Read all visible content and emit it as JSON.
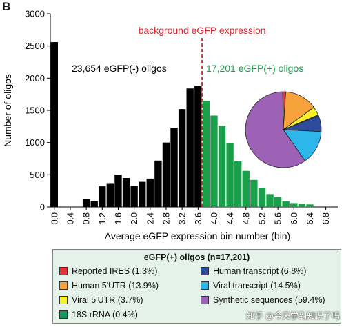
{
  "panel_label": "B",
  "colors": {
    "negative_bars": "#000000",
    "positive_bars": "#1aa04a",
    "threshold_line": "#d7262b",
    "legend_bg": "#e4f2e9"
  },
  "chart_data": [
    {
      "type": "bar",
      "title": "",
      "xlabel": "Average eGFP expression bin number (bin)",
      "ylabel": "Number of oligos",
      "ylim": [
        0,
        3000
      ],
      "yticks": [
        0,
        500,
        1000,
        1500,
        2000,
        2500,
        3000
      ],
      "xticks": [
        "0.0",
        "0.4",
        "0.8",
        "1.2",
        "1.6",
        "2.0",
        "2.4",
        "2.8",
        "3.2",
        "3.6",
        "4.0",
        "4.4",
        "4.8",
        "5.2",
        "5.6",
        "6.0",
        "6.4",
        "6.8"
      ],
      "bin_width": 0.2,
      "bins": [
        {
          "x": 0.0,
          "value": 2560,
          "group": "negative"
        },
        {
          "x": 0.8,
          "value": 120,
          "group": "negative"
        },
        {
          "x": 1.0,
          "value": 90,
          "group": "negative"
        },
        {
          "x": 1.2,
          "value": 320,
          "group": "negative"
        },
        {
          "x": 1.4,
          "value": 370,
          "group": "negative"
        },
        {
          "x": 1.6,
          "value": 500,
          "group": "negative"
        },
        {
          "x": 1.8,
          "value": 450,
          "group": "negative"
        },
        {
          "x": 2.0,
          "value": 330,
          "group": "negative"
        },
        {
          "x": 2.2,
          "value": 390,
          "group": "negative"
        },
        {
          "x": 2.4,
          "value": 440,
          "group": "negative"
        },
        {
          "x": 2.6,
          "value": 720,
          "group": "negative"
        },
        {
          "x": 2.8,
          "value": 1000,
          "group": "negative"
        },
        {
          "x": 3.0,
          "value": 1230,
          "group": "negative"
        },
        {
          "x": 3.2,
          "value": 1520,
          "group": "negative"
        },
        {
          "x": 3.4,
          "value": 1840,
          "group": "negative"
        },
        {
          "x": 3.6,
          "value": 1880,
          "group": "negative"
        },
        {
          "x": 3.8,
          "value": 1650,
          "group": "positive"
        },
        {
          "x": 4.0,
          "value": 1420,
          "group": "positive"
        },
        {
          "x": 4.2,
          "value": 1260,
          "group": "positive"
        },
        {
          "x": 4.4,
          "value": 990,
          "group": "positive"
        },
        {
          "x": 4.6,
          "value": 710,
          "group": "positive"
        },
        {
          "x": 4.8,
          "value": 560,
          "group": "positive"
        },
        {
          "x": 5.0,
          "value": 420,
          "group": "positive"
        },
        {
          "x": 5.2,
          "value": 300,
          "group": "positive"
        },
        {
          "x": 5.4,
          "value": 200,
          "group": "positive"
        },
        {
          "x": 5.6,
          "value": 150,
          "group": "positive"
        },
        {
          "x": 5.8,
          "value": 90,
          "group": "positive"
        },
        {
          "x": 6.0,
          "value": 60,
          "group": "positive"
        },
        {
          "x": 6.2,
          "value": 50,
          "group": "positive"
        },
        {
          "x": 6.4,
          "value": 40,
          "group": "positive"
        }
      ],
      "threshold_x": 3.7,
      "annotations": {
        "threshold_label": "background eGFP expression",
        "negative_label": "23,654 eGFP(-) oligos",
        "positive_label": "17,201 eGFP(+) oligos"
      }
    },
    {
      "type": "pie",
      "title": "eGFP(+) oligos (n=17,201)",
      "start_angle_deg": -1,
      "slices": [
        {
          "label": "Reported IRES (1.3%)",
          "value": 1.3,
          "color": "#e8323a"
        },
        {
          "label": "Human 5'UTR (13.9%)",
          "value": 13.9,
          "color": "#f7a23b"
        },
        {
          "label": "Viral 5'UTR (3.7%)",
          "value": 3.7,
          "color": "#f7ef2a"
        },
        {
          "label": "18S rRNA (0.4%)",
          "value": 0.4,
          "color": "#13975d"
        },
        {
          "label": "Human transcript (6.8%)",
          "value": 6.8,
          "color": "#2e4c9b"
        },
        {
          "label": "Viral transcript (14.5%)",
          "value": 14.5,
          "color": "#2cb6ea"
        },
        {
          "label": "Synthetic sequences (59.4%)",
          "value": 59.4,
          "color": "#9d62b6"
        }
      ]
    }
  ],
  "watermark": "知乎 @今天学到知识了吗"
}
